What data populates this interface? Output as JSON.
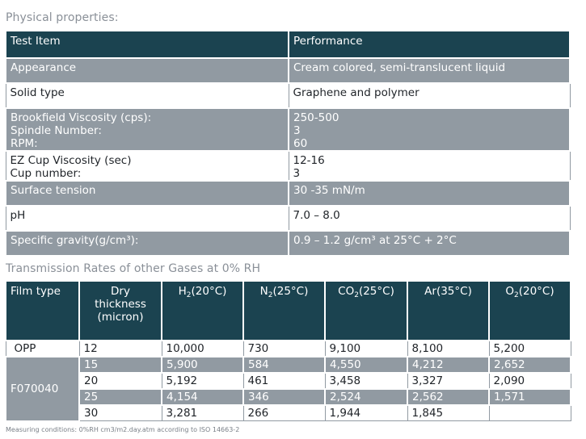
{
  "physical": {
    "title": "Physical properties:",
    "header": [
      "Test Item",
      "Performance"
    ],
    "rows": [
      {
        "item": [
          "Appearance"
        ],
        "perf": [
          "Cream colored, semi-translucent liquid"
        ]
      },
      {
        "item": [
          "Solid type"
        ],
        "perf": [
          "Graphene and polymer"
        ]
      },
      {
        "item": [
          "Brookfield Viscosity (cps):",
          "Spindle Number:",
          "RPM:"
        ],
        "perf": [
          "250-500",
          "3",
          "60"
        ]
      },
      {
        "item": [
          "EZ Cup Viscosity (sec)",
          "Cup number:"
        ],
        "perf": [
          "12-16",
          "3"
        ]
      },
      {
        "item": [
          "Surface tension"
        ],
        "perf": [
          "30 -35 mN/m"
        ]
      },
      {
        "item": [
          "pH"
        ],
        "perf": [
          "7.0 – 8.0"
        ]
      },
      {
        "item": [
          "Specific gravity(g/cm³):"
        ],
        "perf": [
          "0.9 – 1.2 g/cm³ at 25°C + 2°C"
        ]
      }
    ]
  },
  "gas": {
    "title": "Transmission Rates of other Gases at 0% RH",
    "headers": {
      "film_type": "Film type",
      "dry_1": "Dry",
      "dry_2": "thickness",
      "dry_3": "(micron)",
      "h2_a": "H",
      "h2_sub": "2",
      "h2_b": "(20°C)",
      "n2_a": "N",
      "n2_sub": "2",
      "n2_b": "(25°C)",
      "co2_a": "CO",
      "co2_sub": "2",
      "co2_b": "(25°C)",
      "ar": "Ar(35°C)",
      "o2_a": "O",
      "o2_sub": "2",
      "o2_b": "(20°C)"
    },
    "opp": {
      "film": "OPP",
      "cells": [
        "12",
        "10,000",
        "730",
        "9,100",
        "8,100",
        "5,200"
      ]
    },
    "f_film": "F070040",
    "f_rows": [
      [
        "15",
        "5,900",
        "584",
        "4,550",
        "4,212",
        "2,652"
      ],
      [
        "20",
        "5,192",
        "461",
        "3,458",
        "3,327",
        "2,090"
      ],
      [
        "25",
        "4,154",
        "346",
        "2,524",
        "2,562",
        "1,571"
      ],
      [
        "30",
        "3,281",
        "266",
        "1,944",
        "1,845",
        ""
      ]
    ]
  },
  "footnote": "Measuring conditions: 0%RH cm3/m2.day.atm according to ISO 14663-2"
}
